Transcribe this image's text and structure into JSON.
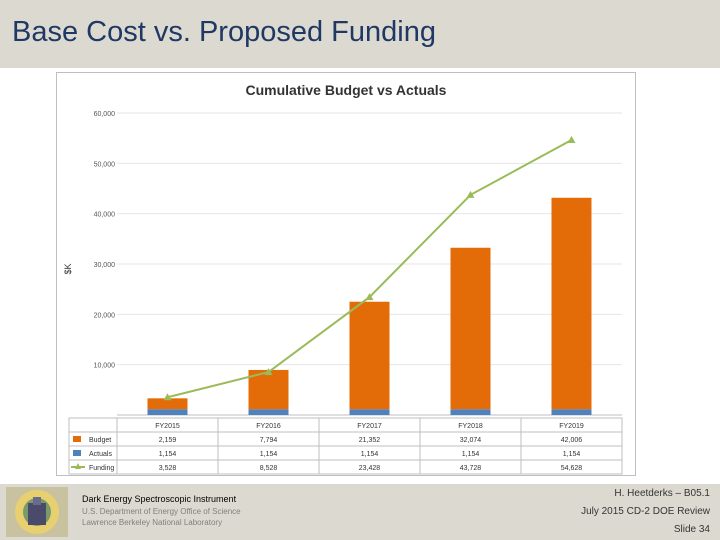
{
  "slide": {
    "title": "Base Cost vs. Proposed Funding"
  },
  "footer": {
    "org_main": "Dark Energy Spectroscopic Instrument",
    "org_sub1": "U.S. Department of Energy Office of Science",
    "org_sub2": "Lawrence Berkeley National Laboratory",
    "presenter": "H. Heetderks – B05.1",
    "review": "July 2015 CD-2 DOE Review",
    "slide_no": "Slide 34"
  },
  "colors": {
    "budget": "#e36c09",
    "actuals": "#4f81bd",
    "funding": "#9bbb59",
    "header_bg": "#dcdad0"
  },
  "chart_data": {
    "type": "bar",
    "title": "Cumulative Budget vs Actuals",
    "ylabel": "$K",
    "xlabel": "",
    "ylim": [
      0,
      60000
    ],
    "yticks": [
      "60,000",
      "50,000",
      "40,000",
      "30,000",
      "20,000",
      "10,000"
    ],
    "ytick_values": [
      60000,
      50000,
      40000,
      30000,
      20000,
      10000
    ],
    "categories": [
      "FY2015",
      "FY2016",
      "FY2017",
      "FY2018",
      "FY2019"
    ],
    "series": [
      {
        "name": "Budget",
        "kind": "bar-stacked",
        "values": [
          2159,
          7794,
          21352,
          32074,
          42006
        ],
        "labels": [
          "2,159",
          "7,794",
          "21,352",
          "32,074",
          "42,006"
        ]
      },
      {
        "name": "Actuals",
        "kind": "bar-stacked",
        "values": [
          1154,
          1154,
          1154,
          1154,
          1154
        ],
        "labels": [
          "1,154",
          "1,154",
          "1,154",
          "1,154",
          "1,154"
        ]
      },
      {
        "name": "Funding",
        "kind": "line",
        "values": [
          3528,
          8528,
          23428,
          43728,
          54628
        ],
        "labels": [
          "3,528",
          "8,528",
          "23,428",
          "43,728",
          "54,628"
        ]
      }
    ]
  }
}
